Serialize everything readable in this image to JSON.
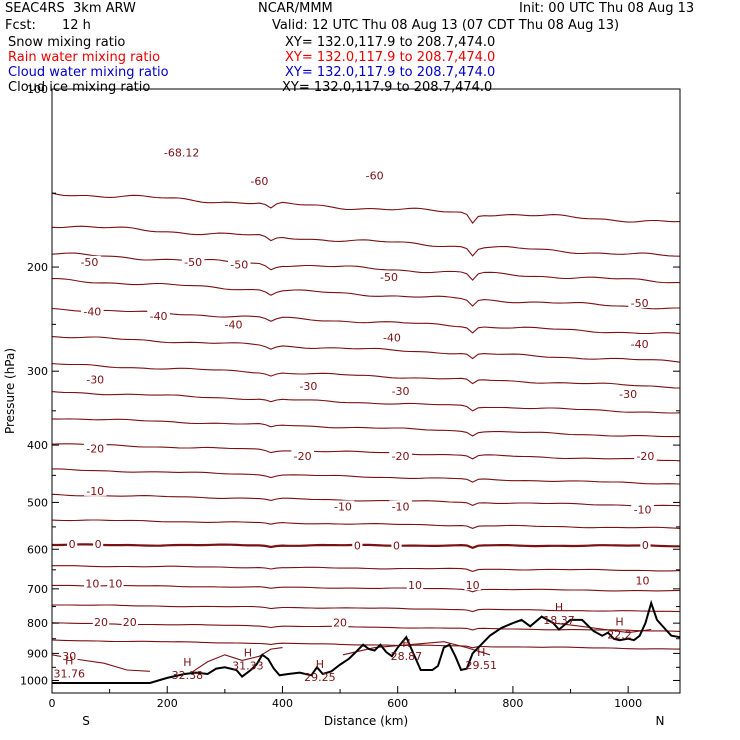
{
  "header": {
    "experiment": "SEAC4RS  3km ARW",
    "center": "NCAR/MMM",
    "init": "Init: 00 UTC Thu 08 Aug 13",
    "fcst_label": "Fcst:",
    "fcst_value": "12 h",
    "valid": "Valid: 12 UTC Thu 08 Aug 13 (07 CDT Thu 08 Aug 13)"
  },
  "legend": [
    {
      "label": "Snow mixing ratio",
      "xy": "XY= 132.0,117.9 to 208.7,474.0",
      "color": "#000000"
    },
    {
      "label": "Rain water mixing ratio",
      "xy": "XY= 132.0,117.9 to 208.7,474.0",
      "color": "#ee0000"
    },
    {
      "label": "Cloud water mixing ratio",
      "xy": "XY= 132.0,117.9 to 208.7,474.0",
      "color": "#0000cc"
    },
    {
      "label": "Cloud ice mixing ratio",
      "xy": "XY= 132.0,117.9 to 208.7,474.0",
      "color": "#000000"
    }
  ],
  "chart_data": {
    "type": "line",
    "title": "",
    "xlabel": "Distance (km)",
    "ylabel": "Pressure (hPa)",
    "xlim": [
      0,
      1090
    ],
    "ylim": [
      1050,
      100
    ],
    "y_scale": "log",
    "x_ticks": [
      0,
      200,
      400,
      600,
      800,
      1000
    ],
    "y_ticks": [
      200,
      300,
      400,
      500,
      600,
      700,
      800,
      900,
      1000
    ],
    "y_top_label": "100",
    "x_end_labels": {
      "left": "S",
      "right": "N"
    },
    "contour_color": "#7b1113",
    "terrain_color": "#000000",
    "contour_levels": [
      {
        "p": 150,
        "slope": 18,
        "label_texts": [],
        "bold": false
      },
      {
        "p": 170,
        "slope": 22,
        "label_texts": [],
        "bold": false
      },
      {
        "p": 190,
        "slope": 22,
        "label_texts": [],
        "bold": false
      },
      {
        "p": 210,
        "slope": 25,
        "label_texts": [],
        "bold": false
      },
      {
        "p": 235,
        "slope": 25,
        "label_texts": [],
        "bold": false
      },
      {
        "p": 262,
        "slope": 27,
        "label_texts": [],
        "bold": false
      },
      {
        "p": 292,
        "slope": 27,
        "label_texts": [],
        "bold": false
      },
      {
        "p": 325,
        "slope": 28,
        "label_texts": [],
        "bold": false
      },
      {
        "p": 360,
        "slope": 28,
        "label_texts": [],
        "bold": false
      },
      {
        "p": 398,
        "slope": 27,
        "label_texts": [],
        "bold": false
      },
      {
        "p": 440,
        "slope": 25,
        "label_texts": [],
        "bold": false
      },
      {
        "p": 485,
        "slope": 22,
        "label_texts": [],
        "bold": false
      },
      {
        "p": 535,
        "slope": 18,
        "label_texts": [],
        "bold": false
      },
      {
        "p": 590,
        "slope": 2,
        "label_texts": [],
        "bold": true
      },
      {
        "p": 640,
        "slope": 12,
        "label_texts": [],
        "bold": false
      },
      {
        "p": 690,
        "slope": 16,
        "label_texts": [],
        "bold": false
      },
      {
        "p": 745,
        "slope": 20,
        "label_texts": [],
        "bold": false
      },
      {
        "p": 800,
        "slope": 25,
        "label_texts": [],
        "bold": false
      },
      {
        "p": 855,
        "slope": 30,
        "label_texts": [],
        "bold": false
      }
    ],
    "contour_labels": [
      {
        "x": 225,
        "p": 128,
        "text": "-68.12"
      },
      {
        "x": 360,
        "p": 143,
        "text": "-60"
      },
      {
        "x": 560,
        "p": 140,
        "text": "-60"
      },
      {
        "x": 65,
        "p": 196,
        "text": "-50"
      },
      {
        "x": 245,
        "p": 196,
        "text": "-50"
      },
      {
        "x": 325,
        "p": 198,
        "text": "-50"
      },
      {
        "x": 585,
        "p": 208,
        "text": "-50"
      },
      {
        "x": 1020,
        "p": 230,
        "text": "-50"
      },
      {
        "x": 70,
        "p": 238,
        "text": "-40"
      },
      {
        "x": 185,
        "p": 242,
        "text": "-40"
      },
      {
        "x": 315,
        "p": 250,
        "text": "-40"
      },
      {
        "x": 590,
        "p": 263,
        "text": "-40"
      },
      {
        "x": 1020,
        "p": 270,
        "text": "-40"
      },
      {
        "x": 75,
        "p": 310,
        "text": "-30"
      },
      {
        "x": 445,
        "p": 318,
        "text": "-30"
      },
      {
        "x": 605,
        "p": 324,
        "text": "-30"
      },
      {
        "x": 1000,
        "p": 328,
        "text": "-30"
      },
      {
        "x": 75,
        "p": 405,
        "text": "-20"
      },
      {
        "x": 435,
        "p": 417,
        "text": "-20"
      },
      {
        "x": 605,
        "p": 417,
        "text": "-20"
      },
      {
        "x": 1030,
        "p": 417,
        "text": "-20"
      },
      {
        "x": 75,
        "p": 478,
        "text": "-10"
      },
      {
        "x": 505,
        "p": 508,
        "text": "-10"
      },
      {
        "x": 605,
        "p": 508,
        "text": "-10"
      },
      {
        "x": 1025,
        "p": 514,
        "text": "-10"
      },
      {
        "x": 35,
        "p": 588,
        "text": "0"
      },
      {
        "x": 80,
        "p": 588,
        "text": "0"
      },
      {
        "x": 530,
        "p": 591,
        "text": "0"
      },
      {
        "x": 598,
        "p": 591,
        "text": "0"
      },
      {
        "x": 1030,
        "p": 590,
        "text": "0"
      },
      {
        "x": 70,
        "p": 686,
        "text": "10"
      },
      {
        "x": 110,
        "p": 686,
        "text": "10"
      },
      {
        "x": 630,
        "p": 690,
        "text": "10"
      },
      {
        "x": 730,
        "p": 690,
        "text": "10"
      },
      {
        "x": 1025,
        "p": 677,
        "text": "10"
      },
      {
        "x": 85,
        "p": 796,
        "text": "20"
      },
      {
        "x": 135,
        "p": 796,
        "text": "20"
      },
      {
        "x": 500,
        "p": 798,
        "text": "20"
      },
      {
        "x": 30,
        "p": 910,
        "text": "30"
      }
    ],
    "maxima": [
      {
        "x": 30,
        "p": 970,
        "letter": "H",
        "value": "31.76"
      },
      {
        "x": 235,
        "p": 975,
        "letter": "H",
        "value": "32.38"
      },
      {
        "x": 340,
        "p": 940,
        "letter": "H",
        "value": "31.33"
      },
      {
        "x": 465,
        "p": 982,
        "letter": "H",
        "value": "29.25"
      },
      {
        "x": 615,
        "p": 905,
        "letter": "H",
        "value": "28.87"
      },
      {
        "x": 745,
        "p": 938,
        "letter": "H",
        "value": "29.51"
      },
      {
        "x": 880,
        "p": 787,
        "letter": "H",
        "value": "18.37"
      },
      {
        "x": 985,
        "p": 833,
        "letter": "H",
        "value": "22.2"
      }
    ],
    "terrain": {
      "x": [
        0,
        50,
        100,
        170,
        200,
        230,
        250,
        270,
        285,
        300,
        320,
        330,
        345,
        355,
        365,
        375,
        385,
        395,
        410,
        430,
        450,
        460,
        470,
        485,
        500,
        515,
        525,
        540,
        550,
        560,
        570,
        580,
        590,
        600,
        615,
        625,
        640,
        660,
        670,
        680,
        690,
        700,
        710,
        720,
        730,
        740,
        760,
        780,
        800,
        815,
        830,
        850,
        870,
        880,
        900,
        920,
        940,
        955,
        965,
        975,
        985,
        1000,
        1010,
        1020,
        1030,
        1040,
        1050,
        1065,
        1075,
        1090
      ],
      "p": [
        1010,
        1010,
        1010,
        1010,
        990,
        975,
        970,
        975,
        955,
        950,
        960,
        985,
        960,
        940,
        905,
        920,
        955,
        980,
        975,
        970,
        980,
        950,
        975,
        965,
        940,
        920,
        900,
        870,
        885,
        890,
        870,
        895,
        910,
        880,
        845,
        890,
        960,
        960,
        945,
        880,
        870,
        910,
        960,
        955,
        900,
        880,
        840,
        815,
        800,
        790,
        810,
        780,
        800,
        820,
        790,
        790,
        825,
        840,
        830,
        850,
        855,
        850,
        855,
        840,
        800,
        740,
        790,
        820,
        840,
        845
      ]
    }
  }
}
